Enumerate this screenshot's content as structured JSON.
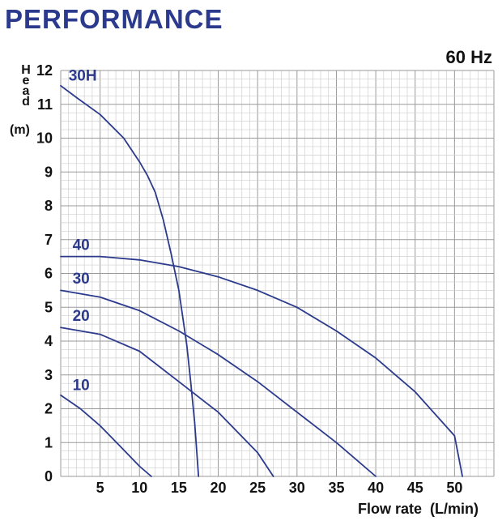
{
  "header": {
    "title": "PERFORMANCE"
  },
  "chart_data": {
    "type": "line",
    "title": "60 Hz",
    "xlabel": "Flow rate  (L/min)",
    "ylabel_letters": [
      "H",
      "e",
      "a",
      "d"
    ],
    "ylabel_unit": "(m)",
    "xlim": [
      0,
      55
    ],
    "ylim": [
      0,
      12
    ],
    "x_ticks": [
      5,
      10,
      15,
      20,
      25,
      30,
      35,
      40,
      45,
      50
    ],
    "y_ticks": [
      0,
      1,
      2,
      3,
      4,
      5,
      6,
      7,
      8,
      9,
      10,
      11,
      12
    ],
    "grid": true,
    "series": [
      {
        "name": "30H",
        "label_at": [
          1,
          11.7
        ],
        "color": "#2b3a8c",
        "points": [
          [
            0,
            11.55
          ],
          [
            2,
            11.2
          ],
          [
            5,
            10.7
          ],
          [
            8,
            10.0
          ],
          [
            10,
            9.3
          ],
          [
            11,
            8.9
          ],
          [
            12,
            8.4
          ],
          [
            13,
            7.6
          ],
          [
            14,
            6.6
          ],
          [
            15,
            5.5
          ],
          [
            16,
            3.9
          ],
          [
            16.5,
            2.8
          ],
          [
            17,
            1.6
          ],
          [
            17.5,
            0
          ]
        ]
      },
      {
        "name": "40",
        "label_at": [
          1.5,
          6.7
        ],
        "color": "#2b3a8c",
        "points": [
          [
            0,
            6.5
          ],
          [
            5,
            6.5
          ],
          [
            10,
            6.4
          ],
          [
            15,
            6.2
          ],
          [
            20,
            5.9
          ],
          [
            25,
            5.5
          ],
          [
            30,
            5.0
          ],
          [
            35,
            4.3
          ],
          [
            40,
            3.5
          ],
          [
            45,
            2.5
          ],
          [
            50,
            1.2
          ],
          [
            51,
            0
          ]
        ]
      },
      {
        "name": "30",
        "label_at": [
          1.5,
          5.7
        ],
        "color": "#2b3a8c",
        "points": [
          [
            0,
            5.5
          ],
          [
            5,
            5.3
          ],
          [
            10,
            4.9
          ],
          [
            15,
            4.3
          ],
          [
            20,
            3.6
          ],
          [
            25,
            2.8
          ],
          [
            30,
            1.9
          ],
          [
            35,
            1.0
          ],
          [
            40,
            0
          ]
        ]
      },
      {
        "name": "20",
        "label_at": [
          1.5,
          4.6
        ],
        "color": "#2b3a8c",
        "points": [
          [
            0,
            4.4
          ],
          [
            5,
            4.2
          ],
          [
            10,
            3.7
          ],
          [
            15,
            2.8
          ],
          [
            20,
            1.9
          ],
          [
            25,
            0.7
          ],
          [
            27,
            0
          ]
        ]
      },
      {
        "name": "10",
        "label_at": [
          1.5,
          2.55
        ],
        "color": "#2b3a8c",
        "points": [
          [
            0,
            2.4
          ],
          [
            2.5,
            2.0
          ],
          [
            5,
            1.5
          ],
          [
            7.5,
            0.9
          ],
          [
            10,
            0.3
          ],
          [
            11.5,
            0
          ]
        ]
      }
    ]
  }
}
